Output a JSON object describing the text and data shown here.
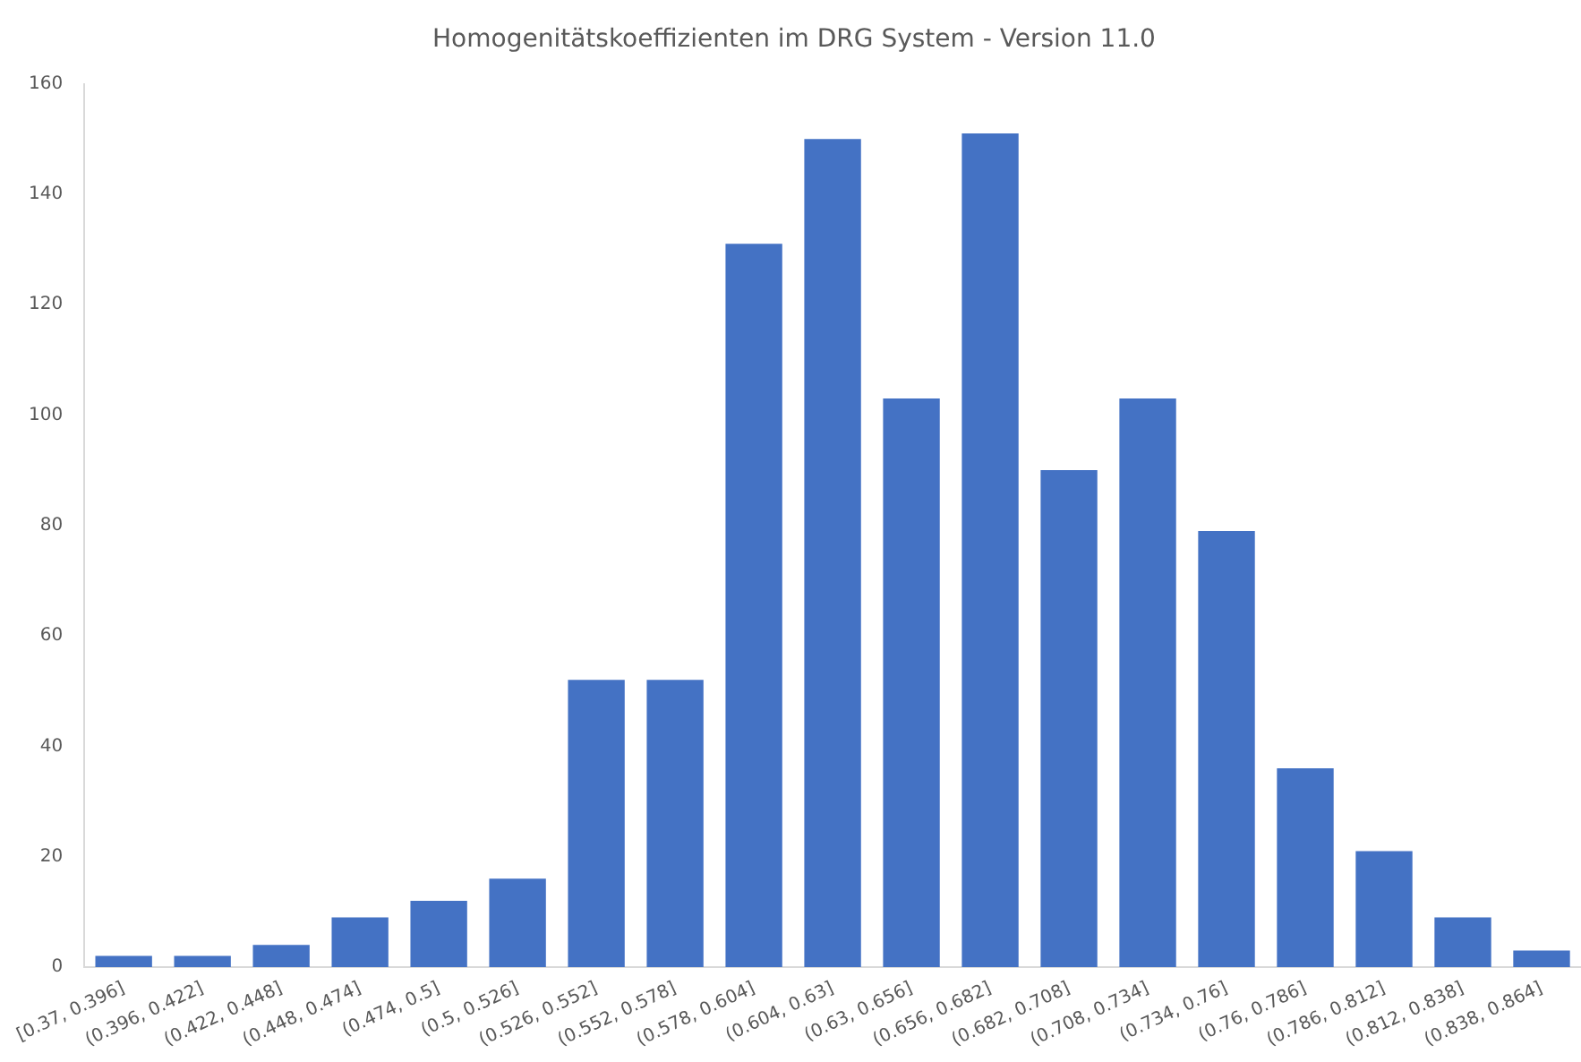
{
  "chart_data": {
    "type": "bar",
    "title": "Homogenitätskoeffizienten im DRG System - Version 11.0",
    "categories": [
      "[0.37, 0.396]",
      "(0.396, 0.422]",
      "(0.422, 0.448]",
      "(0.448, 0.474]",
      "(0.474, 0.5]",
      "(0.5, 0.526]",
      "(0.526, 0.552]",
      "(0.552, 0.578]",
      "(0.578, 0.604]",
      "(0.604, 0.63]",
      "(0.63, 0.656]",
      "(0.656, 0.682]",
      "(0.682, 0.708]",
      "(0.708, 0.734]",
      "(0.734, 0.76]",
      "(0.76, 0.786]",
      "(0.786, 0.812]",
      "(0.812, 0.838]",
      "(0.838, 0.864]"
    ],
    "values": [
      2,
      2,
      4,
      9,
      12,
      16,
      52,
      52,
      131,
      150,
      103,
      151,
      90,
      103,
      79,
      36,
      21,
      9,
      3
    ],
    "color": "#4472c4",
    "ylim": [
      0,
      160
    ],
    "yticks": [
      0,
      20,
      40,
      60,
      80,
      100,
      120,
      140,
      160
    ],
    "grid": false,
    "legend": false
  }
}
